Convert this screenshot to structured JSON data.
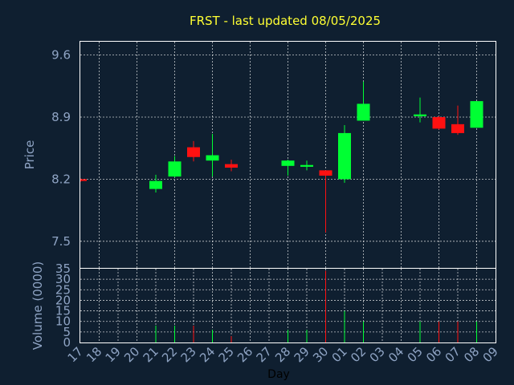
{
  "chart_data": {
    "type": "candlestick",
    "title": "FRST - last updated 08/05/2025",
    "xlabel": "Day",
    "price_panel": {
      "ylabel": "Price",
      "ylim": [
        7.2,
        9.75
      ],
      "yticks": [
        7.5,
        8.2,
        8.9,
        9.6
      ],
      "ytick_labels": [
        "7.5",
        "8.2",
        "8.9",
        "9.6"
      ]
    },
    "volume_panel": {
      "ylabel": "Volume (0000)",
      "ylim": [
        0,
        35
      ],
      "yticks": [
        0,
        5,
        10,
        15,
        20,
        25,
        30,
        35
      ],
      "ytick_labels": [
        "0",
        "5",
        "10",
        "15",
        "20",
        "25",
        "30",
        "35"
      ]
    },
    "x_tick_labels": [
      "17",
      "18",
      "19",
      "20",
      "21",
      "22",
      "23",
      "24",
      "25",
      "26",
      "27",
      "28",
      "29",
      "30",
      "01",
      "02",
      "03",
      "04",
      "05",
      "06",
      "07",
      "08",
      "09"
    ],
    "up_color": "#00ff33",
    "down_color": "#ff1111",
    "candles": [
      {
        "day": "17",
        "open": 8.2,
        "high": 8.21,
        "low": 8.17,
        "close": 8.18,
        "volume": 0
      },
      {
        "day": "21",
        "open": 8.09,
        "high": 8.25,
        "low": 8.05,
        "close": 8.18,
        "volume": 8
      },
      {
        "day": "22",
        "open": 8.23,
        "high": 8.46,
        "low": 8.22,
        "close": 8.4,
        "volume": 8
      },
      {
        "day": "23",
        "open": 8.56,
        "high": 8.63,
        "low": 8.4,
        "close": 8.45,
        "volume": 8
      },
      {
        "day": "24",
        "open": 8.41,
        "high": 8.71,
        "low": 8.23,
        "close": 8.47,
        "volume": 6
      },
      {
        "day": "25",
        "open": 8.37,
        "high": 8.42,
        "low": 8.29,
        "close": 8.33,
        "volume": 3
      },
      {
        "day": "28",
        "open": 8.35,
        "high": 8.42,
        "low": 8.24,
        "close": 8.41,
        "volume": 6
      },
      {
        "day": "29",
        "open": 8.34,
        "high": 8.41,
        "low": 8.3,
        "close": 8.36,
        "volume": 6
      },
      {
        "day": "30",
        "open": 8.3,
        "high": 8.3,
        "low": 7.6,
        "close": 8.24,
        "volume": 34
      },
      {
        "day": "01",
        "open": 8.2,
        "high": 8.81,
        "low": 8.16,
        "close": 8.72,
        "volume": 15
      },
      {
        "day": "02",
        "open": 8.86,
        "high": 9.3,
        "low": 8.86,
        "close": 9.05,
        "volume": 10
      },
      {
        "day": "05",
        "open": 8.91,
        "high": 9.12,
        "low": 8.84,
        "close": 8.93,
        "volume": 10
      },
      {
        "day": "06",
        "open": 8.9,
        "high": 8.91,
        "low": 8.76,
        "close": 8.77,
        "volume": 10
      },
      {
        "day": "07",
        "open": 8.82,
        "high": 9.03,
        "low": 8.7,
        "close": 8.72,
        "volume": 10
      },
      {
        "day": "08",
        "open": 8.78,
        "high": 9.08,
        "low": 8.78,
        "close": 9.08,
        "volume": 10
      }
    ]
  }
}
